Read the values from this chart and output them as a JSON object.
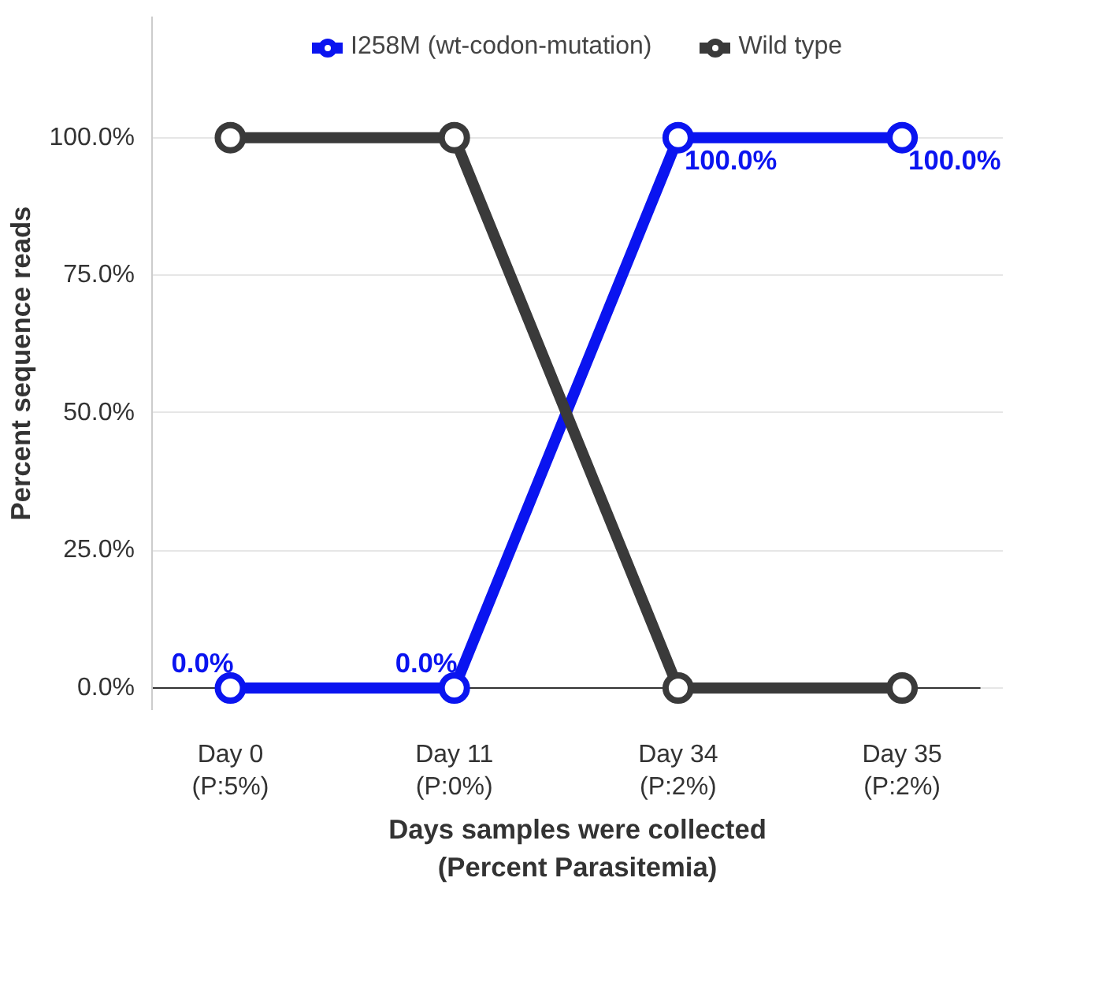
{
  "chart_data": {
    "type": "line",
    "xlabel": "Days samples were collected\n(Percent Parasitemia)",
    "ylabel": "Percent sequence reads",
    "categories": [
      "Day 0\n(P:5%)",
      "Day 11\n(P:0%)",
      "Day 34\n(P:2%)",
      "Day 35\n(P:2%)"
    ],
    "series": [
      {
        "name": "I258M (wt-codon-mutation)",
        "color": "#0a14f0",
        "values": [
          0,
          0,
          100,
          100
        ],
        "value_labels": [
          "0.0%",
          "0.0%",
          "100.0%",
          "100.0%"
        ]
      },
      {
        "name": "Wild type",
        "color": "#3a3a3a",
        "values": [
          100,
          100,
          0,
          0
        ]
      }
    ],
    "ylim": [
      -4,
      122
    ],
    "yticks": [
      {
        "value": 0,
        "label": "0.0%"
      },
      {
        "value": 25,
        "label": "25.0%"
      },
      {
        "value": 50,
        "label": "50.0%"
      },
      {
        "value": 75,
        "label": "75.0%"
      },
      {
        "value": 100,
        "label": "100.0%"
      }
    ],
    "grid": "y",
    "legend": "top",
    "marker": "circle",
    "line_style": "solid"
  }
}
